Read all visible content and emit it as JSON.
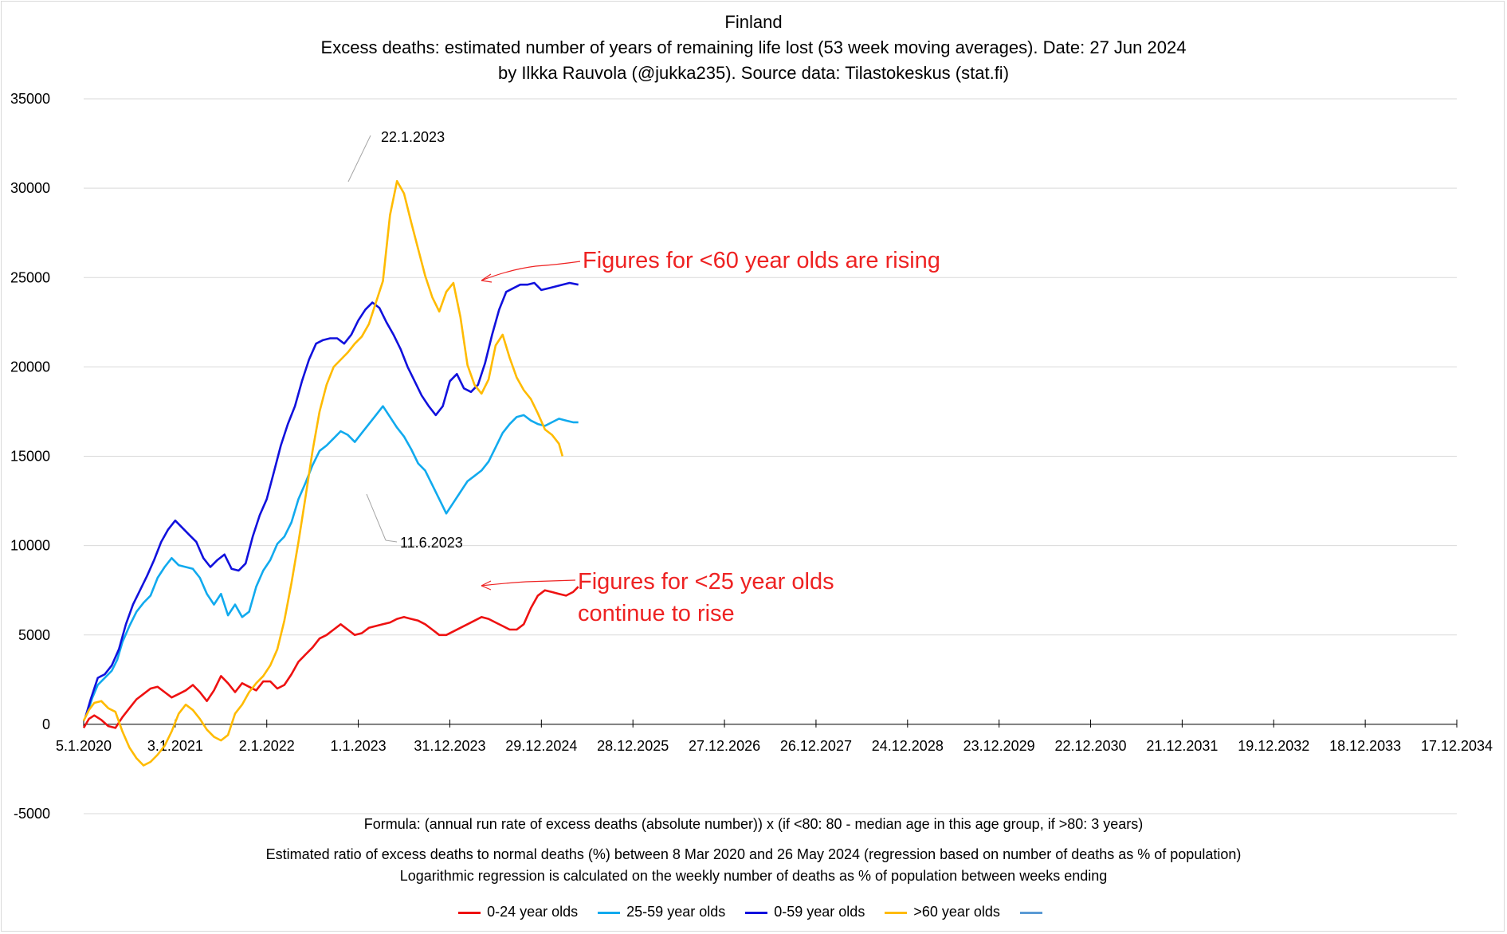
{
  "titles": {
    "line1": "Finland",
    "line2": "Excess deaths: estimated number of years of remaining life lost (53 week moving averages). Date: 27 Jun 2024",
    "line3": "by Ilkka Rauvola (@jukka235). Source data: Tilastokeskus (stat.fi)"
  },
  "notes": {
    "formula": "Formula:  (annual run rate of excess deaths (absolute number)) x (if <80: 80 - median age in this age group, if >80: 3 years)",
    "ratio": "Estimated ratio of excess deaths to normal deaths (%) between 8 Mar 2020 and 26 May 2024 (regression  based on number of deaths as % of population)",
    "regression": "Logarithmic regression is calculated on the weekly number of deaths as % of population between weeks ending"
  },
  "annotations": {
    "rising_60": "Figures for  <60 year olds are rising",
    "rise_25_line1": "Figures for <25 year olds",
    "rise_25_line2": "continue to rise",
    "peak_label": "22.1.2023",
    "trough_label": "11.6.2023"
  },
  "colors": {
    "red": "#ee1111",
    "light_blue": "#11aaee",
    "dark_blue": "#1111dd",
    "gold": "#ffbb00",
    "unnamed": "#5b9bd5",
    "annotation": "#ee2222",
    "grid": "#d9d9d9",
    "leader": "#a6a6a6"
  },
  "chart_data": {
    "type": "line",
    "ylim": [
      -5000,
      35000
    ],
    "y_ticks": [
      35000,
      30000,
      25000,
      20000,
      15000,
      10000,
      5000,
      0,
      -5000
    ],
    "x_tick_labels": [
      "5.1.2020",
      "3.1.2021",
      "2.1.2022",
      "1.1.2023",
      "31.12.2023",
      "29.12.2024",
      "28.12.2025",
      "27.12.2026",
      "26.12.2027",
      "24.12.2028",
      "23.12.2029",
      "22.12.2030",
      "21.12.2031",
      "19.12.2032",
      "18.12.2033",
      "17.12.2034"
    ],
    "x_range_weeks": [
      0,
      780
    ],
    "grid": "horizontal",
    "legend_position": "bottom",
    "series": [
      {
        "name": "0-24 year olds",
        "color": "#ee1111",
        "points": [
          [
            0,
            -200
          ],
          [
            3,
            300
          ],
          [
            6,
            500
          ],
          [
            10,
            250
          ],
          [
            14,
            -100
          ],
          [
            18,
            -200
          ],
          [
            22,
            400
          ],
          [
            26,
            900
          ],
          [
            30,
            1400
          ],
          [
            34,
            1700
          ],
          [
            38,
            2000
          ],
          [
            42,
            2100
          ],
          [
            46,
            1800
          ],
          [
            50,
            1500
          ],
          [
            54,
            1700
          ],
          [
            58,
            1900
          ],
          [
            62,
            2200
          ],
          [
            66,
            1800
          ],
          [
            70,
            1300
          ],
          [
            74,
            1900
          ],
          [
            78,
            2700
          ],
          [
            82,
            2300
          ],
          [
            86,
            1800
          ],
          [
            90,
            2300
          ],
          [
            94,
            2100
          ],
          [
            98,
            1900
          ],
          [
            102,
            2400
          ],
          [
            106,
            2400
          ],
          [
            110,
            2000
          ],
          [
            114,
            2200
          ],
          [
            118,
            2800
          ],
          [
            122,
            3500
          ],
          [
            126,
            3900
          ],
          [
            130,
            4300
          ],
          [
            134,
            4800
          ],
          [
            138,
            5000
          ],
          [
            142,
            5300
          ],
          [
            146,
            5600
          ],
          [
            150,
            5300
          ],
          [
            154,
            5000
          ],
          [
            158,
            5100
          ],
          [
            162,
            5400
          ],
          [
            166,
            5500
          ],
          [
            170,
            5600
          ],
          [
            174,
            5700
          ],
          [
            178,
            5900
          ],
          [
            182,
            6000
          ],
          [
            186,
            5900
          ],
          [
            190,
            5800
          ],
          [
            194,
            5600
          ],
          [
            198,
            5300
          ],
          [
            202,
            5000
          ],
          [
            206,
            5000
          ],
          [
            210,
            5200
          ],
          [
            214,
            5400
          ],
          [
            218,
            5600
          ],
          [
            222,
            5800
          ],
          [
            226,
            6000
          ],
          [
            230,
            5900
          ],
          [
            234,
            5700
          ],
          [
            238,
            5500
          ],
          [
            242,
            5300
          ],
          [
            246,
            5300
          ],
          [
            250,
            5600
          ],
          [
            254,
            6500
          ],
          [
            258,
            7200
          ],
          [
            262,
            7500
          ],
          [
            266,
            7400
          ],
          [
            270,
            7300
          ],
          [
            274,
            7200
          ],
          [
            278,
            7400
          ],
          [
            281,
            7700
          ]
        ]
      },
      {
        "name": "25-59 year olds",
        "color": "#11aaee",
        "points": [
          [
            2,
            600
          ],
          [
            5,
            1500
          ],
          [
            8,
            2200
          ],
          [
            12,
            2600
          ],
          [
            16,
            3000
          ],
          [
            19,
            3600
          ],
          [
            22,
            4600
          ],
          [
            26,
            5500
          ],
          [
            30,
            6300
          ],
          [
            34,
            6800
          ],
          [
            38,
            7200
          ],
          [
            42,
            8200
          ],
          [
            46,
            8800
          ],
          [
            50,
            9300
          ],
          [
            54,
            8900
          ],
          [
            58,
            8800
          ],
          [
            62,
            8700
          ],
          [
            66,
            8200
          ],
          [
            70,
            7300
          ],
          [
            74,
            6700
          ],
          [
            78,
            7300
          ],
          [
            82,
            6100
          ],
          [
            86,
            6700
          ],
          [
            90,
            6000
          ],
          [
            94,
            6300
          ],
          [
            98,
            7700
          ],
          [
            102,
            8600
          ],
          [
            106,
            9200
          ],
          [
            110,
            10100
          ],
          [
            114,
            10500
          ],
          [
            118,
            11300
          ],
          [
            122,
            12600
          ],
          [
            126,
            13500
          ],
          [
            130,
            14500
          ],
          [
            134,
            15300
          ],
          [
            138,
            15600
          ],
          [
            142,
            16000
          ],
          [
            146,
            16400
          ],
          [
            150,
            16200
          ],
          [
            154,
            15800
          ],
          [
            158,
            16300
          ],
          [
            162,
            16800
          ],
          [
            166,
            17300
          ],
          [
            170,
            17800
          ],
          [
            174,
            17200
          ],
          [
            178,
            16600
          ],
          [
            182,
            16100
          ],
          [
            186,
            15400
          ],
          [
            190,
            14600
          ],
          [
            194,
            14200
          ],
          [
            198,
            13400
          ],
          [
            202,
            12600
          ],
          [
            206,
            11800
          ],
          [
            210,
            12400
          ],
          [
            214,
            13000
          ],
          [
            218,
            13600
          ],
          [
            222,
            13900
          ],
          [
            226,
            14200
          ],
          [
            230,
            14700
          ],
          [
            234,
            15500
          ],
          [
            238,
            16300
          ],
          [
            242,
            16800
          ],
          [
            246,
            17200
          ],
          [
            250,
            17300
          ],
          [
            254,
            17000
          ],
          [
            258,
            16800
          ],
          [
            262,
            16700
          ],
          [
            266,
            16900
          ],
          [
            270,
            17100
          ],
          [
            274,
            17000
          ],
          [
            278,
            16900
          ],
          [
            281,
            16900
          ]
        ]
      },
      {
        "name": "0-59 year olds",
        "color": "#1111dd",
        "points": [
          [
            1,
            400
          ],
          [
            4,
            1400
          ],
          [
            8,
            2600
          ],
          [
            12,
            2800
          ],
          [
            16,
            3300
          ],
          [
            20,
            4200
          ],
          [
            24,
            5600
          ],
          [
            28,
            6700
          ],
          [
            32,
            7500
          ],
          [
            36,
            8300
          ],
          [
            40,
            9200
          ],
          [
            44,
            10200
          ],
          [
            48,
            10900
          ],
          [
            52,
            11400
          ],
          [
            56,
            11000
          ],
          [
            60,
            10600
          ],
          [
            64,
            10200
          ],
          [
            68,
            9300
          ],
          [
            72,
            8800
          ],
          [
            76,
            9200
          ],
          [
            80,
            9500
          ],
          [
            84,
            8700
          ],
          [
            88,
            8600
          ],
          [
            92,
            9000
          ],
          [
            96,
            10500
          ],
          [
            100,
            11700
          ],
          [
            104,
            12600
          ],
          [
            108,
            14100
          ],
          [
            112,
            15600
          ],
          [
            116,
            16800
          ],
          [
            120,
            17800
          ],
          [
            124,
            19200
          ],
          [
            128,
            20400
          ],
          [
            132,
            21300
          ],
          [
            136,
            21500
          ],
          [
            140,
            21600
          ],
          [
            144,
            21600
          ],
          [
            148,
            21300
          ],
          [
            152,
            21800
          ],
          [
            156,
            22600
          ],
          [
            160,
            23200
          ],
          [
            164,
            23600
          ],
          [
            168,
            23300
          ],
          [
            172,
            22500
          ],
          [
            176,
            21800
          ],
          [
            180,
            21000
          ],
          [
            184,
            20000
          ],
          [
            188,
            19200
          ],
          [
            192,
            18400
          ],
          [
            196,
            17800
          ],
          [
            200,
            17300
          ],
          [
            204,
            17800
          ],
          [
            208,
            19200
          ],
          [
            212,
            19600
          ],
          [
            216,
            18800
          ],
          [
            220,
            18600
          ],
          [
            224,
            19000
          ],
          [
            228,
            20200
          ],
          [
            232,
            21800
          ],
          [
            236,
            23200
          ],
          [
            240,
            24200
          ],
          [
            244,
            24400
          ],
          [
            248,
            24600
          ],
          [
            252,
            24600
          ],
          [
            256,
            24700
          ],
          [
            260,
            24300
          ],
          [
            264,
            24400
          ],
          [
            268,
            24500
          ],
          [
            272,
            24600
          ],
          [
            276,
            24700
          ],
          [
            281,
            24600
          ]
        ]
      },
      {
        "name": ">60 year olds",
        "color": "#ffbb00",
        "points": [
          [
            0,
            200
          ],
          [
            3,
            800
          ],
          [
            6,
            1200
          ],
          [
            10,
            1300
          ],
          [
            14,
            900
          ],
          [
            18,
            700
          ],
          [
            22,
            -400
          ],
          [
            26,
            -1300
          ],
          [
            30,
            -1900
          ],
          [
            34,
            -2300
          ],
          [
            38,
            -2100
          ],
          [
            42,
            -1700
          ],
          [
            46,
            -1200
          ],
          [
            50,
            -400
          ],
          [
            54,
            600
          ],
          [
            58,
            1100
          ],
          [
            62,
            800
          ],
          [
            66,
            300
          ],
          [
            70,
            -300
          ],
          [
            74,
            -700
          ],
          [
            78,
            -900
          ],
          [
            82,
            -600
          ],
          [
            86,
            600
          ],
          [
            90,
            1100
          ],
          [
            94,
            1800
          ],
          [
            98,
            2300
          ],
          [
            102,
            2700
          ],
          [
            106,
            3300
          ],
          [
            110,
            4200
          ],
          [
            114,
            5800
          ],
          [
            118,
            7900
          ],
          [
            122,
            10200
          ],
          [
            126,
            12700
          ],
          [
            130,
            15300
          ],
          [
            134,
            17500
          ],
          [
            138,
            19000
          ],
          [
            142,
            20000
          ],
          [
            146,
            20400
          ],
          [
            150,
            20800
          ],
          [
            154,
            21300
          ],
          [
            158,
            21700
          ],
          [
            162,
            22400
          ],
          [
            166,
            23600
          ],
          [
            170,
            24800
          ],
          [
            174,
            28500
          ],
          [
            178,
            30400
          ],
          [
            182,
            29700
          ],
          [
            186,
            28100
          ],
          [
            190,
            26600
          ],
          [
            194,
            25100
          ],
          [
            198,
            23900
          ],
          [
            202,
            23100
          ],
          [
            206,
            24200
          ],
          [
            210,
            24700
          ],
          [
            214,
            22800
          ],
          [
            218,
            20100
          ],
          [
            222,
            19000
          ],
          [
            226,
            18500
          ],
          [
            230,
            19300
          ],
          [
            234,
            21200
          ],
          [
            238,
            21800
          ],
          [
            242,
            20500
          ],
          [
            246,
            19400
          ],
          [
            250,
            18700
          ],
          [
            254,
            18200
          ],
          [
            258,
            17400
          ],
          [
            262,
            16500
          ],
          [
            266,
            16200
          ],
          [
            270,
            15700
          ],
          [
            272,
            15000
          ]
        ]
      }
    ],
    "legend_entries": [
      "0-24 year olds",
      "25-59 year olds",
      "0-59 year olds",
      ">60 year olds",
      ""
    ]
  }
}
